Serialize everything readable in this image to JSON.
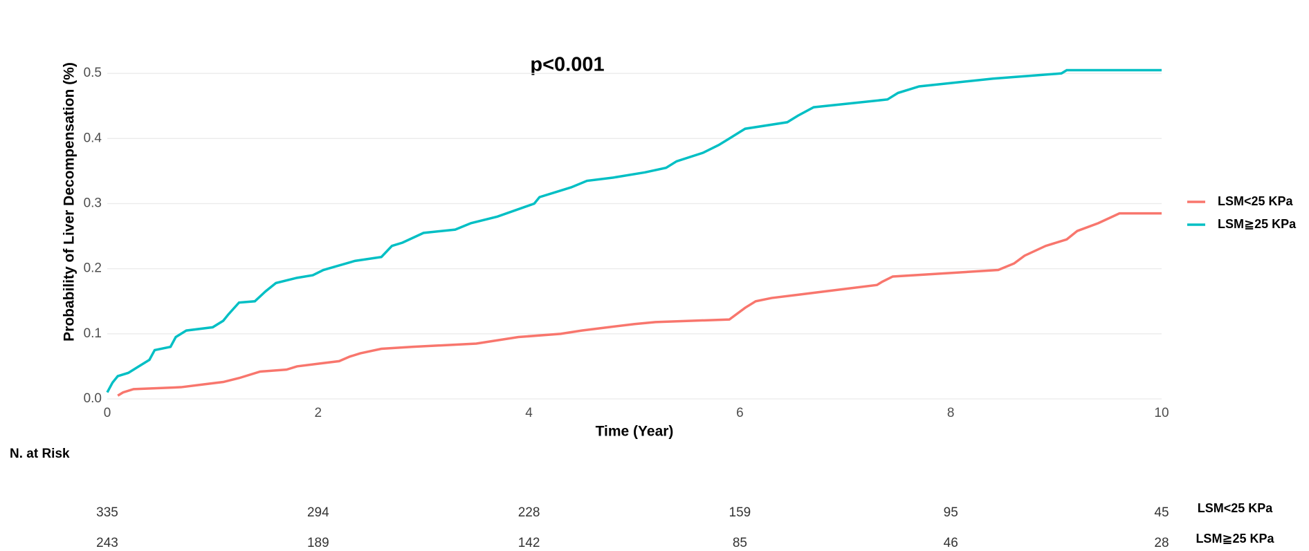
{
  "chart_data": {
    "type": "line",
    "x_label": "Time (Year)",
    "y_label": "Probability of Liver Decompensation (%)",
    "annotation": "p<0.001",
    "xlim": [
      0,
      10
    ],
    "xticks": [
      0,
      2,
      4,
      6,
      8,
      10
    ],
    "ylim": [
      0,
      0.6
    ],
    "yticks": [
      {
        "value": 0,
        "label": "0.0"
      },
      0.1,
      0.2,
      0.3,
      0.4,
      0.5
    ],
    "grid": true,
    "legend": "right",
    "series": [
      {
        "name": "LSM<25 KPa",
        "color": "#f8766d",
        "x": [
          0.1,
          0.15,
          0.25,
          0.7,
          0.9,
          1.1,
          1.25,
          1.45,
          1.7,
          1.8,
          2.0,
          2.2,
          2.3,
          2.4,
          2.6,
          2.9,
          3.5,
          3.7,
          3.9,
          4.3,
          4.5,
          4.75,
          5.0,
          5.2,
          5.9,
          6.05,
          6.15,
          6.3,
          6.55,
          6.8,
          7.3,
          7.35,
          7.45,
          8.45,
          8.6,
          8.7,
          8.9,
          9.1,
          9.2,
          9.4,
          9.6,
          10
        ],
        "values": [
          0.005,
          0.01,
          0.015,
          0.018,
          0.022,
          0.026,
          0.032,
          0.042,
          0.045,
          0.05,
          0.054,
          0.058,
          0.065,
          0.07,
          0.077,
          0.08,
          0.085,
          0.09,
          0.095,
          0.1,
          0.105,
          0.11,
          0.115,
          0.118,
          0.122,
          0.14,
          0.15,
          0.155,
          0.16,
          0.165,
          0.175,
          0.18,
          0.188,
          0.198,
          0.208,
          0.22,
          0.235,
          0.245,
          0.258,
          0.27,
          0.285,
          0.285
        ]
      },
      {
        "name": "LSM≧25 KPa",
        "color": "#00bfc4",
        "x": [
          0,
          0.05,
          0.1,
          0.2,
          0.3,
          0.4,
          0.45,
          0.6,
          0.65,
          0.75,
          1.0,
          1.1,
          1.15,
          1.25,
          1.4,
          1.5,
          1.6,
          1.8,
          1.95,
          2.05,
          2.2,
          2.35,
          2.6,
          2.7,
          2.8,
          3.0,
          3.3,
          3.45,
          3.7,
          4.05,
          4.1,
          4.3,
          4.4,
          4.55,
          4.8,
          5.1,
          5.3,
          5.4,
          5.65,
          5.8,
          5.9,
          6.0,
          6.05,
          6.45,
          6.55,
          6.7,
          7.4,
          7.5,
          7.7,
          8.4,
          9.05,
          9.1,
          10
        ],
        "values": [
          0.01,
          0.025,
          0.035,
          0.04,
          0.05,
          0.06,
          0.075,
          0.08,
          0.095,
          0.105,
          0.11,
          0.12,
          0.13,
          0.148,
          0.15,
          0.165,
          0.178,
          0.186,
          0.19,
          0.198,
          0.205,
          0.212,
          0.218,
          0.235,
          0.24,
          0.255,
          0.26,
          0.27,
          0.28,
          0.3,
          0.31,
          0.32,
          0.325,
          0.335,
          0.34,
          0.348,
          0.355,
          0.365,
          0.378,
          0.39,
          0.4,
          0.41,
          0.415,
          0.425,
          0.435,
          0.448,
          0.46,
          0.47,
          0.48,
          0.492,
          0.5,
          0.505,
          0.505
        ]
      }
    ]
  },
  "risk_table": {
    "title": "N. at Risk",
    "rows": [
      {
        "name": "LSM<25 KPa",
        "values": [
          335,
          294,
          228,
          159,
          95,
          45
        ]
      },
      {
        "name": "LSM≧25 KPa",
        "values": [
          243,
          189,
          142,
          85,
          46,
          28
        ]
      }
    ]
  }
}
